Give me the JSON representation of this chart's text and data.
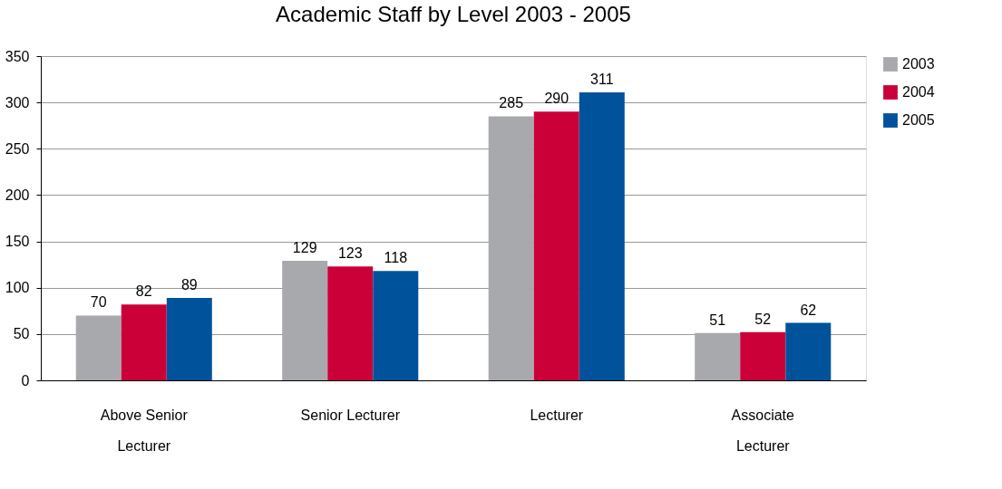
{
  "chart_data": {
    "type": "bar",
    "title": "Academic Staff by Level 2003 - 2005",
    "categories": [
      "Above Senior Lecturer",
      "Senior Lecturer",
      "Lecturer",
      "Associate Lecturer"
    ],
    "series": [
      {
        "name": "2003",
        "color": "#a8a9ad",
        "values": [
          70,
          129,
          285,
          51
        ]
      },
      {
        "name": "2004",
        "color": "#cc0039",
        "values": [
          82,
          123,
          290,
          52
        ]
      },
      {
        "name": "2005",
        "color": "#00529b",
        "values": [
          89,
          118,
          311,
          62
        ]
      }
    ],
    "ylim": [
      0,
      350
    ],
    "yticks": [
      0,
      50,
      100,
      150,
      200,
      250,
      300,
      350
    ],
    "grid": "y",
    "legend": "right",
    "data_labels": true
  }
}
